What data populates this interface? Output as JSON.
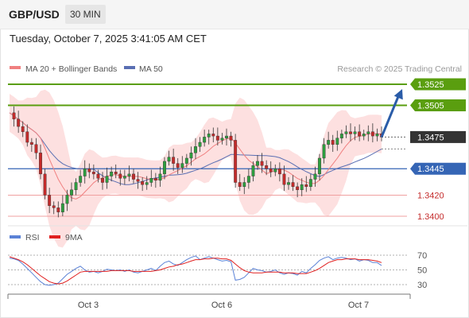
{
  "header": {
    "symbol": "GBP/USD",
    "timeframe": "30 MIN",
    "datetime": "Tuesday, October 7, 2025 3:41:05 AM CET"
  },
  "legend": {
    "ma20": "MA 20 + Bollinger Bands",
    "ma50": "MA 50",
    "credit": "Research © 2025 Trading Central"
  },
  "colors": {
    "resistance": "#5a9e0f",
    "support": "#3565b5",
    "minor_support": "#f0a0a0",
    "ma20": "#f08080",
    "ma50": "#5a6fb3",
    "bands_fill": "#fde0e0",
    "candle_up": "#2e9e3f",
    "candle_down": "#c42b2b",
    "current": "#333333",
    "arrow": "#2a5ca8",
    "rsi": "#5b82d6",
    "rsi_ma": "#e02020"
  },
  "chart_data": [
    {
      "type": "candlestick",
      "x_ticks": [
        "Oct 3",
        "Oct 6",
        "Oct 7"
      ],
      "ylim": [
        1.3385,
        1.3535
      ],
      "levels": [
        {
          "value": 1.3525,
          "label": "1.3525",
          "kind": "resistance"
        },
        {
          "value": 1.3505,
          "label": "1.3505",
          "kind": "resistance"
        },
        {
          "value": 1.3475,
          "label": "1.3475",
          "kind": "current"
        },
        {
          "value": 1.3445,
          "label": "1.3445",
          "kind": "support"
        },
        {
          "value": 1.342,
          "label": "1.3420",
          "kind": "minor_support"
        },
        {
          "value": 1.34,
          "label": "1.3400",
          "kind": "minor_support"
        }
      ],
      "price_path": [
        1.3498,
        1.3492,
        1.3485,
        1.348,
        1.347,
        1.3468,
        1.346,
        1.344,
        1.342,
        1.341,
        1.3408,
        1.3404,
        1.3412,
        1.342,
        1.3425,
        1.3432,
        1.3438,
        1.3445,
        1.3442,
        1.344,
        1.3436,
        1.3432,
        1.3438,
        1.3442,
        1.344,
        1.3436,
        1.3438,
        1.344,
        1.3435,
        1.3433,
        1.343,
        1.3432,
        1.3436,
        1.3434,
        1.344,
        1.3452,
        1.3456,
        1.345,
        1.3446,
        1.345,
        1.3455,
        1.346,
        1.3466,
        1.347,
        1.3475,
        1.3478,
        1.3476,
        1.3472,
        1.3474,
        1.3476,
        1.3472,
        1.3432,
        1.3428,
        1.3432,
        1.3438,
        1.3448,
        1.3452,
        1.3448,
        1.3445,
        1.3442,
        1.3445,
        1.344,
        1.343,
        1.3432,
        1.3428,
        1.3425,
        1.343,
        1.3428,
        1.3435,
        1.344,
        1.3455,
        1.3468,
        1.3472,
        1.3468,
        1.3474,
        1.3478,
        1.348,
        1.3478,
        1.348,
        1.3476,
        1.3478,
        1.348,
        1.3476,
        1.3478,
        1.3475
      ],
      "forecast_path": [
        1.3475,
        1.3525
      ]
    },
    {
      "type": "line",
      "name": "RSI",
      "y_ticks": [
        70,
        50,
        30
      ],
      "ylim": [
        20,
        80
      ],
      "series": [
        {
          "name": "RSI",
          "values": [
            66,
            65,
            63,
            58,
            52,
            46,
            40,
            34,
            30,
            29,
            30,
            32,
            38,
            44,
            48,
            52,
            55,
            50,
            47,
            48,
            46,
            48,
            51,
            50,
            49,
            50,
            48,
            50,
            47,
            46,
            48,
            50,
            52,
            49,
            55,
            60,
            62,
            58,
            56,
            60,
            64,
            67,
            69,
            64,
            66,
            68,
            66,
            64,
            62,
            63,
            61,
            36,
            37,
            40,
            46,
            52,
            50,
            49,
            47,
            48,
            50,
            46,
            44,
            46,
            45,
            43,
            48,
            46,
            52,
            57,
            63,
            66,
            68,
            64,
            66,
            67,
            66,
            64,
            65,
            62,
            64,
            63,
            60,
            60,
            56
          ]
        },
        {
          "name": "9MA",
          "values": [
            68,
            66,
            64,
            61,
            57,
            52,
            47,
            42,
            38,
            34,
            32,
            31,
            32,
            35,
            39,
            43,
            47,
            48,
            48,
            48,
            48,
            48,
            48,
            49,
            49,
            49,
            49,
            49,
            48,
            48,
            48,
            48,
            48,
            49,
            50,
            52,
            54,
            55,
            57,
            58,
            60,
            62,
            64,
            64,
            65,
            65,
            66,
            66,
            65,
            65,
            63,
            58,
            53,
            49,
            47,
            46,
            46,
            46,
            47,
            47,
            47,
            47,
            46,
            46,
            46,
            45,
            45,
            45,
            47,
            49,
            52,
            56,
            60,
            62,
            64,
            64,
            65,
            65,
            65,
            64,
            64,
            64,
            63,
            62,
            60
          ]
        }
      ]
    }
  ]
}
